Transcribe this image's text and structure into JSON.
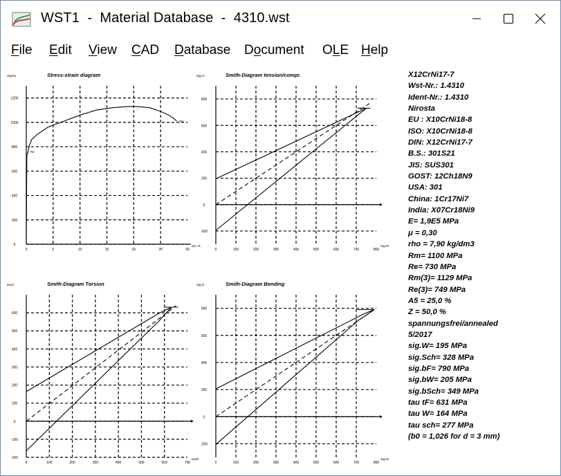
{
  "window": {
    "title": "WST1  -  Material Database  -  4310.wst",
    "controls": {
      "minimize": "—",
      "maximize": "☐",
      "close": "✕"
    }
  },
  "menu": [
    {
      "pre": "",
      "accel": "F",
      "post": "ile"
    },
    {
      "pre": "",
      "accel": "E",
      "post": "dit"
    },
    {
      "pre": "",
      "accel": "V",
      "post": "iew"
    },
    {
      "pre": "",
      "accel": "C",
      "post": "AD"
    },
    {
      "pre": "",
      "accel": "D",
      "post": "atabase"
    },
    {
      "pre": "D",
      "accel": "o",
      "post": "cument"
    },
    {
      "pre": "O",
      "accel": "L",
      "post": "E"
    },
    {
      "pre": "",
      "accel": "H",
      "post": "elp"
    }
  ],
  "info_lines": [
    "X12CrNi17-7",
    "Wst-Nr.: 1.4310",
    "Ident-Nr.: 1.4310",
    "Nirosta",
    "EU : X10CrNi18-8",
    "ISO: X10CrNi18-8",
    "DIN: X12CrNi17-7",
    "B.S.: 301S21",
    "JIS: SUS301",
    "GOST: 12Ch18N9",
    "USA: 301",
    "China: 1Cr17Ni7",
    "India: X07Cr18Ni9",
    "E= 1,9E5 MPa",
    "μ  = 0,30",
    "rho = 7,90 kg/dm3",
    "Rm= 1100 MPa",
    "Re= 730 MPa",
    "Rm(3)= 1129 MPa",
    "Re(3)= 749 MPa",
    "A5 = 25,0 %",
    "Z = 50,0 %",
    "spannungsfrei/annealed",
    "5/2017",
    "sig.W= 195 MPa",
    "sig.Sch= 328 MPa",
    "sig.bF= 790 MPa",
    "sig.bW= 205 MPa",
    "sig.bSch= 349 MPa",
    "tau tF= 631 MPa",
    "tau W= 164 MPa",
    "tau sch= 277 MPa",
    "(b0 = 1,026 for d = 3 mm)"
  ],
  "chart_data": [
    {
      "type": "line",
      "title": "Stress-strain diagram",
      "ylabel": "Sigma",
      "xlabel": "eps %",
      "xlim": [
        0,
        30
      ],
      "ylim": [
        0,
        1300
      ],
      "xticks": [
        "0",
        "5",
        "10",
        "15",
        "20",
        "25",
        "30"
      ],
      "yticks": [
        "0",
        "200",
        "400",
        "600",
        "800",
        "1000",
        "1200"
      ],
      "grid": true,
      "series": [
        {
          "x": [
            0,
            0.1,
            0.35,
            0.5,
            1,
            2,
            4,
            7,
            10,
            13,
            16,
            19,
            20.5,
            23,
            25,
            26.5,
            27.5,
            28
          ],
          "y": [
            0,
            730,
            760,
            800,
            860,
            900,
            960,
            1010,
            1060,
            1100,
            1120,
            1130,
            1130,
            1120,
            1090,
            1060,
            1030,
            1010
          ]
        }
      ],
      "annotations": [
        {
          "text": "Rm",
          "x": 28,
          "y": 1010
        },
        {
          "text": "Re",
          "x": 0.35,
          "y": 760
        }
      ]
    },
    {
      "type": "line",
      "title": "Smith-Diagram tension/compr.",
      "ylabel": "Sig.O",
      "xlabel": "Sig.M",
      "xlim": [
        0,
        800
      ],
      "ylim": [
        -300,
        900
      ],
      "xticks": [
        "0",
        "100",
        "200",
        "300",
        "400",
        "500",
        "600",
        "700",
        "800"
      ],
      "yticks": [
        "-200",
        "0",
        "200",
        "400",
        "600",
        "800"
      ],
      "grid": true,
      "series": [
        {
          "x": [
            0,
            750
          ],
          "y": [
            195,
            730
          ]
        },
        {
          "x": [
            0,
            750
          ],
          "y": [
            -195,
            730
          ]
        },
        {
          "x": [
            0,
            770
          ],
          "y": [
            0,
            770
          ]
        },
        {
          "x": [
            705,
            770
          ],
          "y": [
            730,
            730
          ]
        }
      ]
    },
    {
      "type": "line",
      "title": "Smith-Diagram Torsion",
      "ylabel": "tauO",
      "xlabel": "tauM",
      "xlim": [
        0,
        700
      ],
      "ylim": [
        -200,
        700
      ],
      "xticks": [
        "0",
        "100",
        "200",
        "300",
        "400",
        "500",
        "600",
        "700"
      ],
      "yticks": [
        "-200",
        "-100",
        "0",
        "100",
        "200",
        "300",
        "400",
        "500",
        "600"
      ],
      "grid": true,
      "series": [
        {
          "x": [
            0,
            580,
            630
          ],
          "y": [
            164,
            600,
            631
          ]
        },
        {
          "x": [
            0,
            580,
            630
          ],
          "y": [
            -164,
            560,
            631
          ]
        },
        {
          "x": [
            0,
            650
          ],
          "y": [
            0,
            640
          ]
        },
        {
          "x": [
            600,
            660
          ],
          "y": [
            631,
            631
          ]
        }
      ]
    },
    {
      "type": "line",
      "title": "Smith-Diagram Bending",
      "ylabel": "Sig.O",
      "xlabel": "Sig.M",
      "xlim": [
        0,
        800
      ],
      "ylim": [
        -300,
        900
      ],
      "xticks": [
        "0",
        "100",
        "200",
        "300",
        "400",
        "500",
        "600",
        "700",
        "800"
      ],
      "yticks": [
        "-200",
        "0",
        "200",
        "400",
        "600",
        "800"
      ],
      "grid": true,
      "series": [
        {
          "x": [
            0,
            740,
            790
          ],
          "y": [
            205,
            760,
            790
          ]
        },
        {
          "x": [
            0,
            710,
            790
          ],
          "y": [
            -205,
            710,
            790
          ]
        },
        {
          "x": [
            0,
            790
          ],
          "y": [
            0,
            790
          ]
        },
        {
          "x": [
            700,
            790
          ],
          "y": [
            790,
            790
          ]
        }
      ]
    }
  ]
}
